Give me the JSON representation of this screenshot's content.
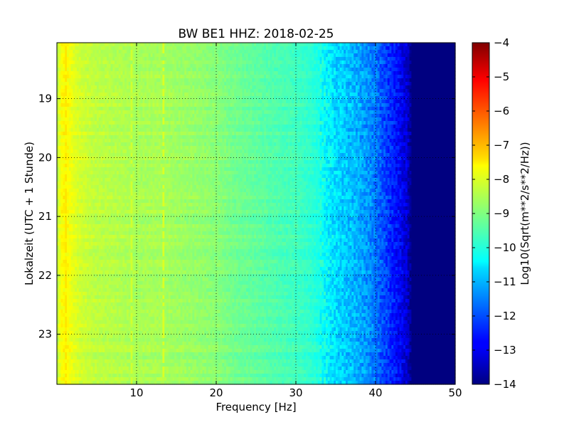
{
  "chart_data": {
    "type": "heatmap",
    "title": "BW BE1 HHZ: 2018-02-25",
    "xlabel": "Frequency [Hz]",
    "ylabel": "Lokalzeit (UTC + 1 Stunde)",
    "xlim": [
      0,
      50
    ],
    "ylim": [
      18.05,
      23.85
    ],
    "x_ticks": [
      10,
      20,
      30,
      40,
      50
    ],
    "y_ticks": [
      19,
      20,
      21,
      22,
      23
    ],
    "grid": true,
    "colorbar": {
      "label": "Log10(Sqrt(m**2/s**2/Hz))",
      "range": [
        -14,
        -4
      ],
      "ticks": [
        -4,
        -5,
        -6,
        -7,
        -8,
        -9,
        -10,
        -11,
        -12,
        -13,
        -14
      ],
      "colormap": "jet"
    },
    "spectral_profile": {
      "frequency_hz": [
        0,
        0.5,
        1,
        1.5,
        2,
        3,
        5,
        8,
        10,
        13,
        15,
        18,
        20,
        22,
        25,
        28,
        30,
        32,
        33,
        34,
        35,
        37,
        39,
        40,
        41,
        42,
        43,
        44,
        44.5,
        50
      ],
      "log_amplitude": [
        -8.5,
        -7.8,
        -7.7,
        -7.8,
        -8.0,
        -8.2,
        -8.4,
        -8.5,
        -8.6,
        -8.6,
        -8.7,
        -8.8,
        -8.9,
        -9.1,
        -9.3,
        -9.5,
        -9.6,
        -9.8,
        -10.0,
        -10.3,
        -10.6,
        -10.9,
        -11.3,
        -11.6,
        -12.0,
        -12.4,
        -12.8,
        -13.2,
        -14.0,
        -14.0
      ]
    },
    "notable_features": [
      {
        "frequency_hz": 1.0,
        "value": -7.5,
        "note": "narrow high-energy band near 1 Hz"
      },
      {
        "frequency_hz": 13.3,
        "value": -8.1,
        "note": "elevated line"
      },
      {
        "frequency_hz": 9.3,
        "value": -8.2,
        "note": "elevated line"
      }
    ]
  }
}
